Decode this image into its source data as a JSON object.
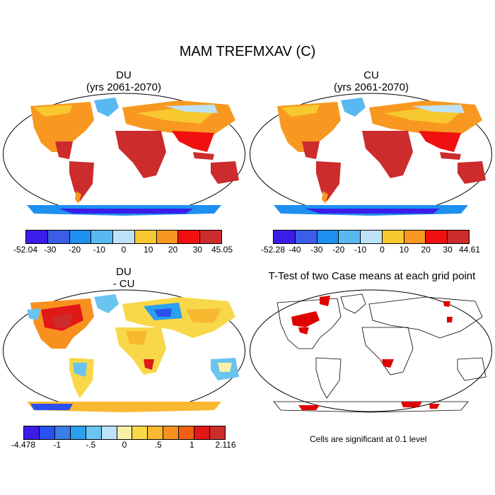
{
  "title": "MAM TREFMXAV (C)",
  "panels": [
    {
      "id": "du",
      "title": "DU",
      "subtitle": "(yrs 2061-2070)"
    },
    {
      "id": "cu",
      "title": "CU",
      "subtitle": "(yrs 2061-2070)"
    },
    {
      "id": "diff",
      "title": "DU",
      "subtitle": "- CU"
    },
    {
      "id": "ttest",
      "title": "T-Test of two Case means at each grid point",
      "subtitle": ""
    }
  ],
  "colorbars": [
    {
      "id": "du_bar",
      "colors": [
        "#3a1ee8",
        "#3a5ee8",
        "#1e90f0",
        "#58b8f0",
        "#bde2f6",
        "#f8c830",
        "#f89820",
        "#f01010",
        "#cc2c2c"
      ],
      "labels": [
        "-52.04",
        "-30",
        "-20",
        "-10",
        "0",
        "10",
        "20",
        "30",
        "45.05"
      ]
    },
    {
      "id": "cu_bar",
      "colors": [
        "#3a1ee8",
        "#3a5ee8",
        "#1e90f0",
        "#58b8f0",
        "#bde2f6",
        "#f8c830",
        "#f89820",
        "#f01010",
        "#cc2c2c"
      ],
      "labels": [
        "-52.28",
        "-40",
        "-30",
        "-20",
        "-10",
        "0",
        "10",
        "20",
        "30",
        "44.61"
      ]
    },
    {
      "id": "diff_bar",
      "colors": [
        "#3a1ee8",
        "#2a50f0",
        "#3a7ee8",
        "#2aa0f0",
        "#6ac4f0",
        "#bde2f6",
        "#fbf0a8",
        "#f8d848",
        "#f8b830",
        "#f89020",
        "#f06010",
        "#e01818",
        "#cc2c2c"
      ],
      "labels": [
        "-4.478",
        "-1",
        "-.5",
        "0",
        ".5",
        "1",
        "2.116"
      ]
    }
  ],
  "note": "Cells are significant at 0.1 level",
  "colors": {
    "hot": "#cc2c2c",
    "red": "#f01010",
    "orange": "#f89820",
    "yellow": "#f8c830",
    "pale": "#bde2f6",
    "blue": "#3a1ee8",
    "sig": "#e00000"
  }
}
